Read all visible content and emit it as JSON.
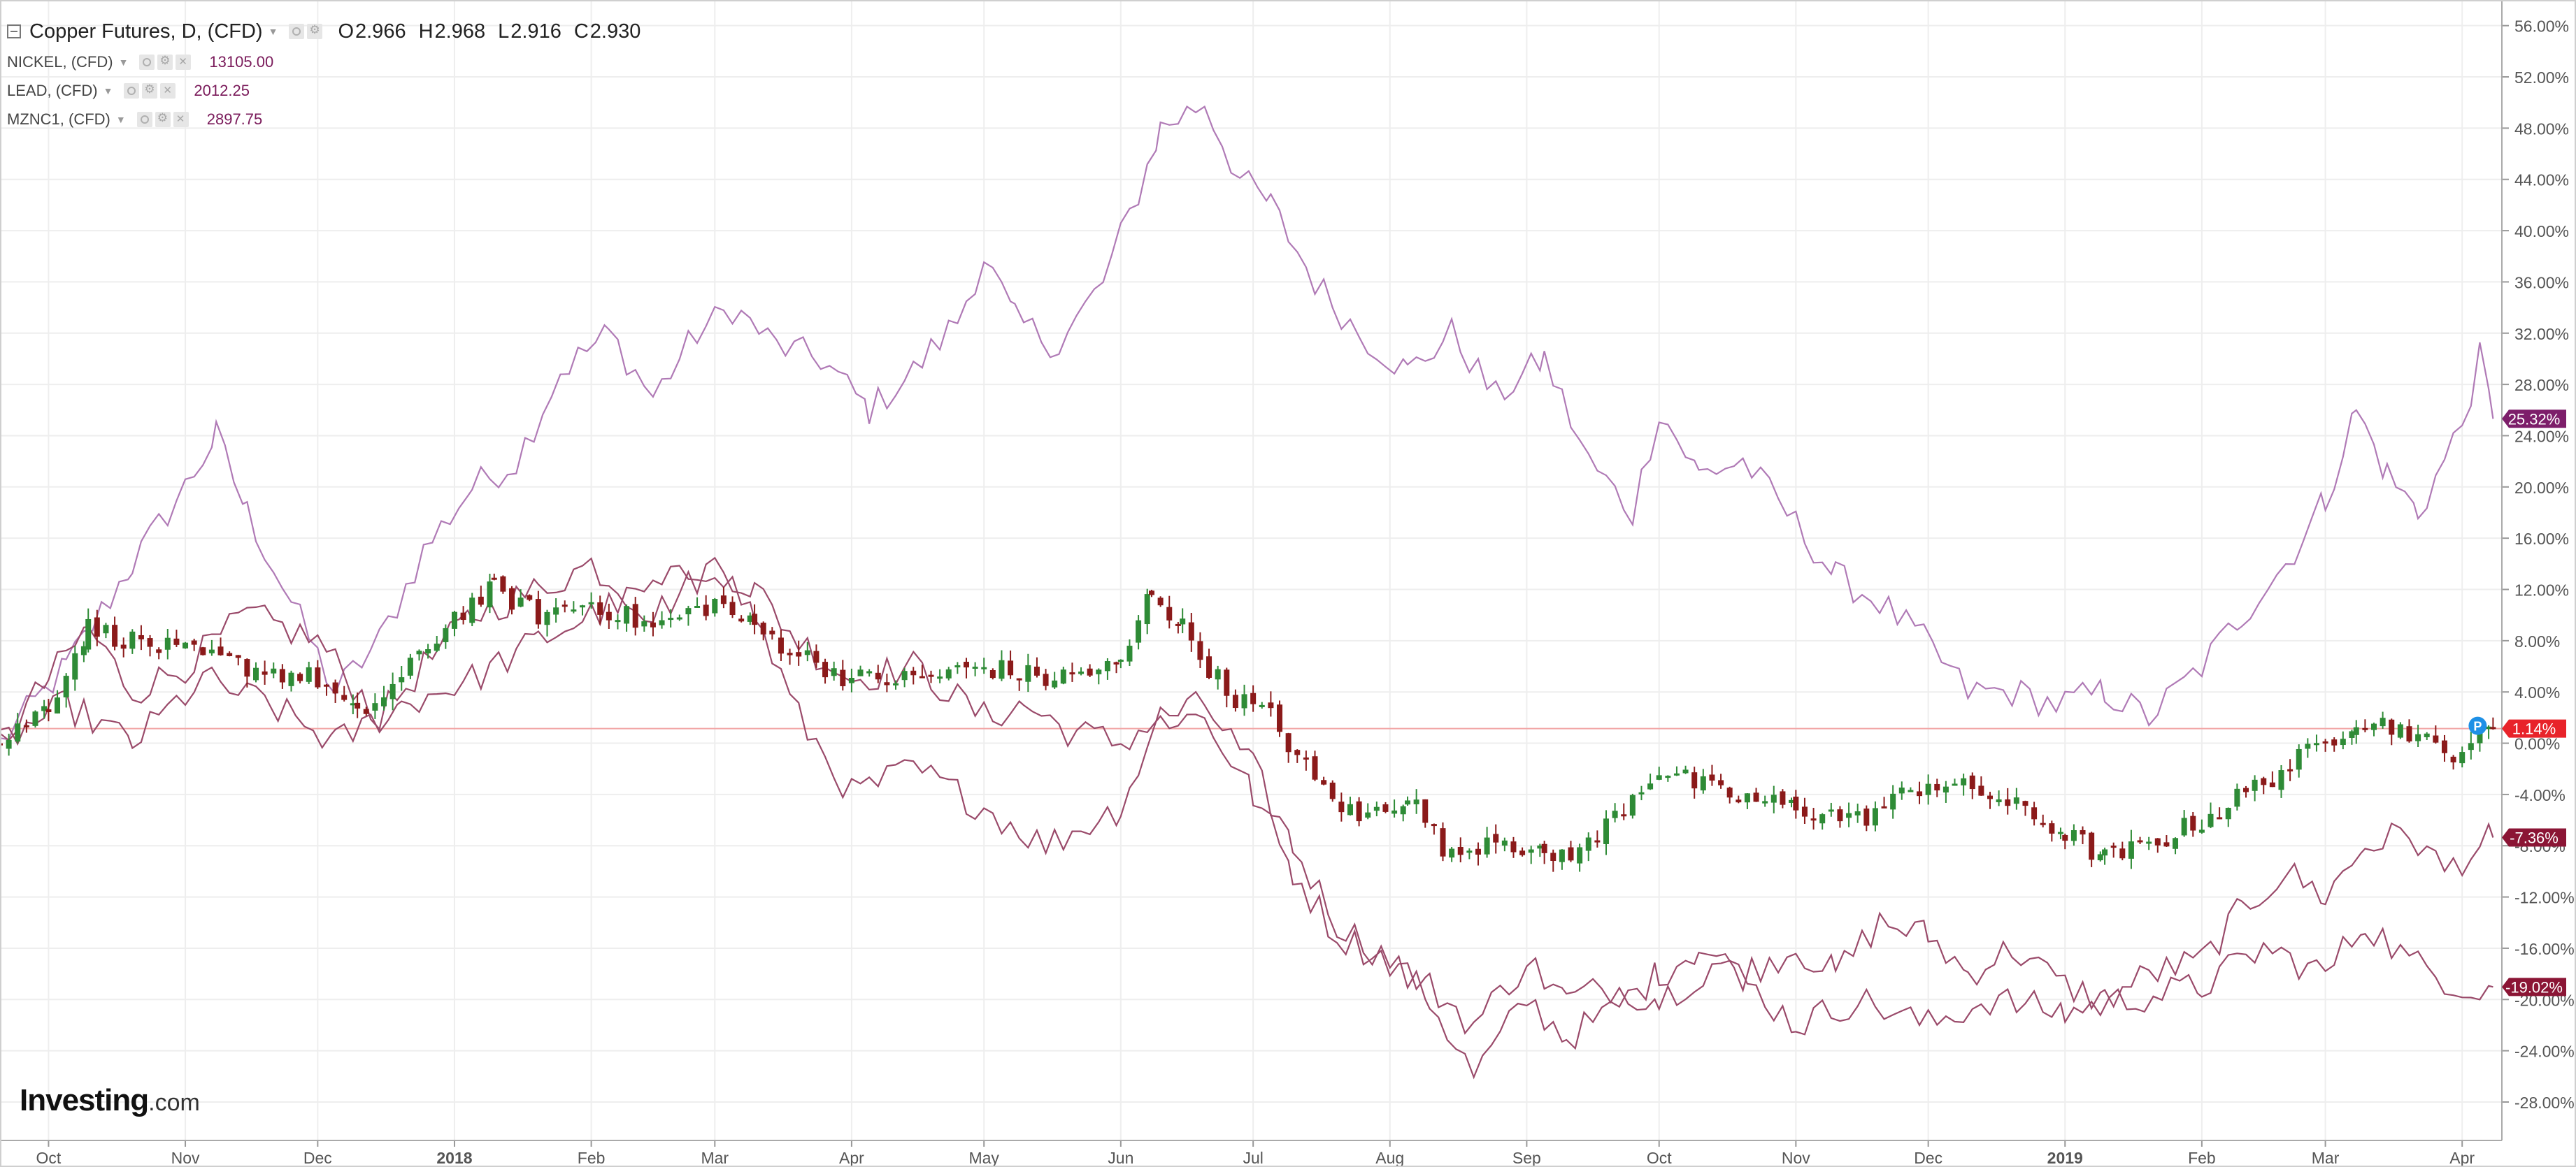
{
  "legend": {
    "main": {
      "name": "Copper Futures, D, (CFD)",
      "ohlc": [
        {
          "label": "O",
          "value": "2.966"
        },
        {
          "label": "H",
          "value": "2.968"
        },
        {
          "label": "L",
          "value": "2.916"
        },
        {
          "label": "C",
          "value": "2.930"
        }
      ]
    },
    "overlays": [
      {
        "name": "NICKEL, (CFD)",
        "value": "13105.00"
      },
      {
        "name": "LEAD, (CFD)",
        "value": "2012.25"
      },
      {
        "name": "MZNC1, (CFD)",
        "value": "2897.75"
      }
    ]
  },
  "logo": {
    "brand": "Investing",
    "suffix": ".com"
  },
  "colors": {
    "up_candle": "#2e8b36",
    "down_candle": "#8b1a1a",
    "overlay_line": "#b07ab6",
    "overlay_line_dark": "#9a4a6a",
    "price_line": "#f2a7a7",
    "badge_current": "#e8232a",
    "badge_nickel": "#7d1e6a",
    "badge_lead": "#8b1535",
    "badge_zinc": "#8b1535",
    "grid": "#eeeeee",
    "axis_text": "#555555"
  },
  "chart_data": {
    "type": "candlestick-comparison",
    "y_unit": "percent change",
    "ylim": [
      -31,
      58
    ],
    "y_ticks": [
      56,
      52,
      48,
      44,
      40,
      36,
      32,
      28,
      24,
      20,
      16,
      12,
      8,
      4,
      0,
      -4,
      -8,
      -12,
      -16,
      -20,
      -24,
      -28
    ],
    "x_ticks": [
      {
        "label": "Oct",
        "date": "2017-10-01",
        "bold": false
      },
      {
        "label": "Nov",
        "date": "2017-11-01",
        "bold": false
      },
      {
        "label": "Dec",
        "date": "2017-12-01",
        "bold": false
      },
      {
        "label": "2018",
        "date": "2018-01-01",
        "bold": true
      },
      {
        "label": "Feb",
        "date": "2018-02-01",
        "bold": false
      },
      {
        "label": "Mar",
        "date": "2018-03-01",
        "bold": false
      },
      {
        "label": "Apr",
        "date": "2018-04-01",
        "bold": false
      },
      {
        "label": "May",
        "date": "2018-05-01",
        "bold": false
      },
      {
        "label": "Jun",
        "date": "2018-06-01",
        "bold": false
      },
      {
        "label": "Jul",
        "date": "2018-07-01",
        "bold": false
      },
      {
        "label": "Aug",
        "date": "2018-08-01",
        "bold": false
      },
      {
        "label": "Sep",
        "date": "2018-09-01",
        "bold": false
      },
      {
        "label": "Oct",
        "date": "2018-10-01",
        "bold": false
      },
      {
        "label": "Nov",
        "date": "2018-11-01",
        "bold": false
      },
      {
        "label": "Dec",
        "date": "2018-12-01",
        "bold": false
      },
      {
        "label": "2019",
        "date": "2019-01-01",
        "bold": true
      },
      {
        "label": "Feb",
        "date": "2019-02-01",
        "bold": false
      },
      {
        "label": "Mar",
        "date": "2019-03-01",
        "bold": false
      },
      {
        "label": "Apr",
        "date": "2019-04-01",
        "bold": false
      }
    ],
    "xlim": [
      "2017-09-20",
      "2019-04-10"
    ],
    "current_level": 1.14,
    "badges": [
      {
        "text": "25.32%",
        "value": 25.32,
        "color": "#7d1e6a"
      },
      {
        "text": "1.14%",
        "value": 1.14,
        "color": "#e8232a"
      },
      {
        "text": "-7.36%",
        "value": -7.36,
        "color": "#8b1535"
      },
      {
        "text": "-19.02%",
        "value": -19.02,
        "color": "#8b1535"
      }
    ],
    "series": [
      {
        "name": "NICKEL, (CFD)",
        "style": "line",
        "points": [
          [
            "2017-09-20",
            0
          ],
          [
            "2017-10-05",
            6
          ],
          [
            "2017-10-20",
            14
          ],
          [
            "2017-11-01",
            20
          ],
          [
            "2017-11-08",
            24
          ],
          [
            "2017-11-15",
            18
          ],
          [
            "2017-11-25",
            11
          ],
          [
            "2017-12-05",
            4
          ],
          [
            "2017-12-15",
            8
          ],
          [
            "2017-12-25",
            15
          ],
          [
            "2018-01-05",
            20
          ],
          [
            "2018-01-15",
            22
          ],
          [
            "2018-01-25",
            29
          ],
          [
            "2018-02-05",
            32
          ],
          [
            "2018-02-15",
            27
          ],
          [
            "2018-02-25",
            32
          ],
          [
            "2018-03-05",
            34
          ],
          [
            "2018-03-15",
            31
          ],
          [
            "2018-03-25",
            30
          ],
          [
            "2018-04-05",
            26
          ],
          [
            "2018-04-15",
            29
          ],
          [
            "2018-04-25",
            33
          ],
          [
            "2018-05-01",
            38
          ],
          [
            "2018-05-08",
            33
          ],
          [
            "2018-05-18",
            31
          ],
          [
            "2018-05-28",
            36
          ],
          [
            "2018-06-05",
            43
          ],
          [
            "2018-06-10",
            48
          ],
          [
            "2018-06-20",
            50
          ],
          [
            "2018-06-28",
            44
          ],
          [
            "2018-07-05",
            42
          ],
          [
            "2018-07-15",
            36
          ],
          [
            "2018-07-25",
            32
          ],
          [
            "2018-08-05",
            29
          ],
          [
            "2018-08-15",
            32
          ],
          [
            "2018-08-25",
            27
          ],
          [
            "2018-09-05",
            30
          ],
          [
            "2018-09-15",
            22
          ],
          [
            "2018-09-25",
            18
          ],
          [
            "2018-10-01",
            26
          ],
          [
            "2018-10-10",
            21
          ],
          [
            "2018-10-20",
            22
          ],
          [
            "2018-10-30",
            18
          ],
          [
            "2018-11-10",
            13
          ],
          [
            "2018-11-20",
            11
          ],
          [
            "2018-11-30",
            8
          ],
          [
            "2018-12-10",
            4
          ],
          [
            "2018-12-20",
            4
          ],
          [
            "2018-12-30",
            3
          ],
          [
            "2019-01-10",
            4
          ],
          [
            "2019-01-20",
            2
          ],
          [
            "2019-02-01",
            6
          ],
          [
            "2019-02-10",
            10
          ],
          [
            "2019-02-20",
            14
          ],
          [
            "2019-03-01",
            19
          ],
          [
            "2019-03-08",
            26
          ],
          [
            "2019-03-15",
            21
          ],
          [
            "2019-03-22",
            18
          ],
          [
            "2019-03-28",
            22
          ],
          [
            "2019-04-01",
            25
          ],
          [
            "2019-04-05",
            30
          ],
          [
            "2019-04-08",
            25.32
          ]
        ]
      },
      {
        "name": "LEAD, (CFD)",
        "style": "line",
        "points": [
          [
            "2017-09-20",
            0
          ],
          [
            "2017-10-01",
            5
          ],
          [
            "2017-10-10",
            9
          ],
          [
            "2017-10-20",
            4
          ],
          [
            "2017-11-01",
            6
          ],
          [
            "2017-11-15",
            10
          ],
          [
            "2017-12-01",
            8
          ],
          [
            "2017-12-15",
            2
          ],
          [
            "2017-12-25",
            6
          ],
          [
            "2018-01-05",
            10
          ],
          [
            "2018-01-20",
            12
          ],
          [
            "2018-02-01",
            14
          ],
          [
            "2018-02-15",
            10
          ],
          [
            "2018-03-01",
            14
          ],
          [
            "2018-03-10",
            12
          ],
          [
            "2018-03-20",
            8
          ],
          [
            "2018-04-01",
            5
          ],
          [
            "2018-04-15",
            6
          ],
          [
            "2018-05-01",
            2
          ],
          [
            "2018-05-10",
            3
          ],
          [
            "2018-05-20",
            1
          ],
          [
            "2018-06-01",
            0
          ],
          [
            "2018-06-10",
            2
          ],
          [
            "2018-06-20",
            3
          ],
          [
            "2018-07-01",
            -2
          ],
          [
            "2018-07-10",
            -8
          ],
          [
            "2018-07-20",
            -14
          ],
          [
            "2018-08-01",
            -17
          ],
          [
            "2018-08-10",
            -20
          ],
          [
            "2018-08-20",
            -26
          ],
          [
            "2018-09-01",
            -20
          ],
          [
            "2018-09-10",
            -23
          ],
          [
            "2018-09-20",
            -21
          ],
          [
            "2018-10-01",
            -18
          ],
          [
            "2018-10-10",
            -16
          ],
          [
            "2018-10-20",
            -18
          ],
          [
            "2018-11-01",
            -16
          ],
          [
            "2018-11-10",
            -18
          ],
          [
            "2018-11-20",
            -14
          ],
          [
            "2018-12-01",
            -15
          ],
          [
            "2018-12-10",
            -18
          ],
          [
            "2018-12-20",
            -16
          ],
          [
            "2019-01-01",
            -19
          ],
          [
            "2019-01-10",
            -20
          ],
          [
            "2019-01-20",
            -18
          ],
          [
            "2019-02-01",
            -17
          ],
          [
            "2019-02-10",
            -13
          ],
          [
            "2019-02-20",
            -10
          ],
          [
            "2019-03-01",
            -12
          ],
          [
            "2019-03-10",
            -8
          ],
          [
            "2019-03-20",
            -7
          ],
          [
            "2019-03-28",
            -10
          ],
          [
            "2019-04-08",
            -7.36
          ]
        ]
      },
      {
        "name": "MZNC1, (CFD)",
        "style": "line",
        "points": [
          [
            "2017-09-20",
            0
          ],
          [
            "2017-10-05",
            3
          ],
          [
            "2017-10-20",
            0
          ],
          [
            "2017-11-05",
            5
          ],
          [
            "2017-11-20",
            3
          ],
          [
            "2017-12-05",
            0
          ],
          [
            "2017-12-20",
            3
          ],
          [
            "2018-01-05",
            5
          ],
          [
            "2018-01-20",
            8
          ],
          [
            "2018-02-01",
            10
          ],
          [
            "2018-02-15",
            12
          ],
          [
            "2018-03-01",
            14
          ],
          [
            "2018-03-10",
            10
          ],
          [
            "2018-03-20",
            2
          ],
          [
            "2018-04-01",
            -4
          ],
          [
            "2018-04-15",
            -2
          ],
          [
            "2018-05-01",
            -5
          ],
          [
            "2018-05-15",
            -8
          ],
          [
            "2018-06-01",
            -5
          ],
          [
            "2018-06-10",
            2
          ],
          [
            "2018-06-20",
            2
          ],
          [
            "2018-07-01",
            -4
          ],
          [
            "2018-07-10",
            -10
          ],
          [
            "2018-07-20",
            -15
          ],
          [
            "2018-08-01",
            -17
          ],
          [
            "2018-08-10",
            -19
          ],
          [
            "2018-08-20",
            -22
          ],
          [
            "2018-09-01",
            -17
          ],
          [
            "2018-09-10",
            -20
          ],
          [
            "2018-09-20",
            -19
          ],
          [
            "2018-10-01",
            -20
          ],
          [
            "2018-10-15",
            -17
          ],
          [
            "2018-11-01",
            -22
          ],
          [
            "2018-11-15",
            -20
          ],
          [
            "2018-12-01",
            -22
          ],
          [
            "2018-12-15",
            -20
          ],
          [
            "2019-01-01",
            -21
          ],
          [
            "2019-01-15",
            -20
          ],
          [
            "2019-02-01",
            -19
          ],
          [
            "2019-02-15",
            -16
          ],
          [
            "2019-03-01",
            -18
          ],
          [
            "2019-03-10",
            -14
          ],
          [
            "2019-03-20",
            -17
          ],
          [
            "2019-04-01",
            -19
          ],
          [
            "2019-04-08",
            -19.02
          ]
        ]
      },
      {
        "name": "Copper Futures, D, (CFD)",
        "style": "candlestick",
        "points": [
          [
            "2017-09-20",
            0
          ],
          [
            "2017-10-01",
            3
          ],
          [
            "2017-10-10",
            9
          ],
          [
            "2017-10-20",
            8
          ],
          [
            "2017-11-01",
            7
          ],
          [
            "2017-11-15",
            6
          ],
          [
            "2017-12-01",
            5
          ],
          [
            "2017-12-10",
            2
          ],
          [
            "2017-12-20",
            5
          ],
          [
            "2018-01-01",
            10
          ],
          [
            "2018-01-10",
            12
          ],
          [
            "2018-01-20",
            10
          ],
          [
            "2018-02-01",
            11
          ],
          [
            "2018-02-15",
            9
          ],
          [
            "2018-03-01",
            11
          ],
          [
            "2018-03-10",
            9
          ],
          [
            "2018-03-20",
            7
          ],
          [
            "2018-04-01",
            5
          ],
          [
            "2018-04-15",
            5
          ],
          [
            "2018-05-01",
            6
          ],
          [
            "2018-05-15",
            5
          ],
          [
            "2018-06-01",
            6
          ],
          [
            "2018-06-08",
            12
          ],
          [
            "2018-06-15",
            9
          ],
          [
            "2018-06-25",
            4
          ],
          [
            "2018-07-05",
            2
          ],
          [
            "2018-07-15",
            -3
          ],
          [
            "2018-07-25",
            -6
          ],
          [
            "2018-08-05",
            -4
          ],
          [
            "2018-08-15",
            -9
          ],
          [
            "2018-08-25",
            -7
          ],
          [
            "2018-09-05",
            -9
          ],
          [
            "2018-09-15",
            -8
          ],
          [
            "2018-09-25",
            -4
          ],
          [
            "2018-10-01",
            -2
          ],
          [
            "2018-10-15",
            -4
          ],
          [
            "2018-11-01",
            -5
          ],
          [
            "2018-11-15",
            -6
          ],
          [
            "2018-12-01",
            -3
          ],
          [
            "2018-12-15",
            -4
          ],
          [
            "2019-01-01",
            -7
          ],
          [
            "2019-01-10",
            -9
          ],
          [
            "2019-01-20",
            -8
          ],
          [
            "2019-02-01",
            -6
          ],
          [
            "2019-02-15",
            -3
          ],
          [
            "2019-03-01",
            0
          ],
          [
            "2019-03-08",
            2
          ],
          [
            "2019-03-20",
            1
          ],
          [
            "2019-03-28",
            -1
          ],
          [
            "2019-04-08",
            1.14
          ]
        ]
      }
    ]
  }
}
